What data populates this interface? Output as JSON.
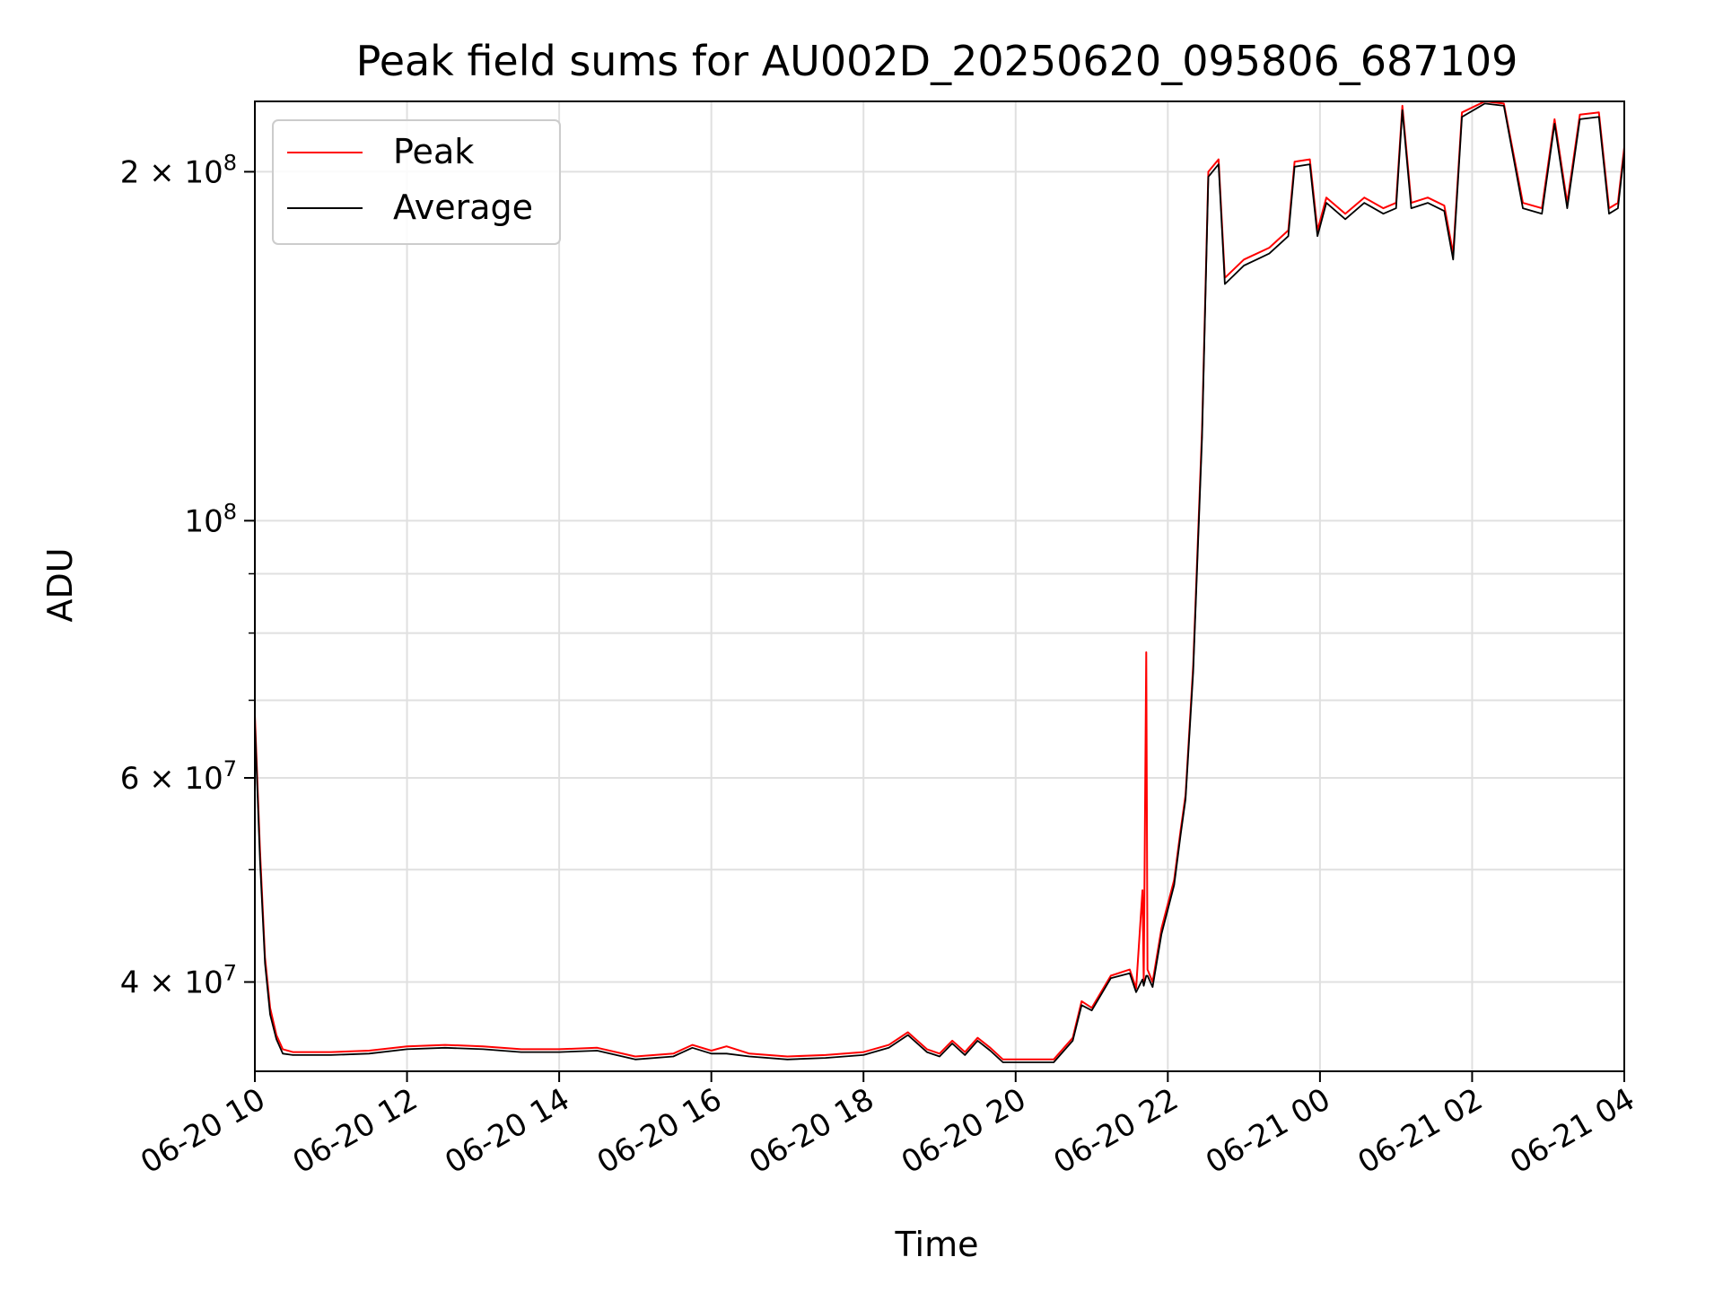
{
  "chart_data": {
    "type": "line",
    "title": "Peak field sums for AU002D_20250620_095806_687109",
    "xlabel": "Time",
    "ylabel": "ADU",
    "y_scale": "log",
    "ylim": [
      33500000,
      230000000
    ],
    "xlim": [
      "06-20 10:00",
      "06-21 04:00"
    ],
    "grid": true,
    "legend_position": "upper-left",
    "x_ticks": [
      {
        "t": "06-20 10:00",
        "label": "06-20 10"
      },
      {
        "t": "06-20 12:00",
        "label": "06-20 12"
      },
      {
        "t": "06-20 14:00",
        "label": "06-20 14"
      },
      {
        "t": "06-20 16:00",
        "label": "06-20 16"
      },
      {
        "t": "06-20 18:00",
        "label": "06-20 18"
      },
      {
        "t": "06-20 20:00",
        "label": "06-20 20"
      },
      {
        "t": "06-20 22:00",
        "label": "06-20 22"
      },
      {
        "t": "06-21 00:00",
        "label": "06-21 00"
      },
      {
        "t": "06-21 02:00",
        "label": "06-21 02"
      },
      {
        "t": "06-21 04:00",
        "label": "06-21 04"
      }
    ],
    "y_ticks": [
      {
        "value": 40000000,
        "coef": "4",
        "exp": "7"
      },
      {
        "value": 60000000,
        "coef": "6",
        "exp": "7"
      },
      {
        "value": 100000000,
        "coef": "",
        "exp": "8"
      },
      {
        "value": 200000000,
        "coef": "2",
        "exp": "8"
      }
    ],
    "y_minor_ticks": [
      50000000,
      70000000,
      80000000,
      90000000
    ],
    "series": [
      {
        "name": "Peak",
        "color": "#ff0000",
        "points": [
          [
            "06-20 10:00",
            68000000
          ],
          [
            "06-20 10:04",
            52000000
          ],
          [
            "06-20 10:08",
            42000000
          ],
          [
            "06-20 10:12",
            38000000
          ],
          [
            "06-20 10:17",
            36000000
          ],
          [
            "06-20 10:22",
            35000000
          ],
          [
            "06-20 10:30",
            34800000
          ],
          [
            "06-20 11:00",
            34800000
          ],
          [
            "06-20 11:30",
            34900000
          ],
          [
            "06-20 12:00",
            35200000
          ],
          [
            "06-20 12:30",
            35300000
          ],
          [
            "06-20 13:00",
            35200000
          ],
          [
            "06-20 13:30",
            35000000
          ],
          [
            "06-20 14:00",
            35000000
          ],
          [
            "06-20 14:30",
            35100000
          ],
          [
            "06-20 15:00",
            34500000
          ],
          [
            "06-20 15:30",
            34700000
          ],
          [
            "06-20 15:45",
            35300000
          ],
          [
            "06-20 16:00",
            34900000
          ],
          [
            "06-20 16:12",
            35200000
          ],
          [
            "06-20 16:30",
            34700000
          ],
          [
            "06-20 17:00",
            34500000
          ],
          [
            "06-20 17:30",
            34600000
          ],
          [
            "06-20 18:00",
            34800000
          ],
          [
            "06-20 18:20",
            35300000
          ],
          [
            "06-20 18:35",
            36200000
          ],
          [
            "06-20 18:50",
            35000000
          ],
          [
            "06-20 19:00",
            34700000
          ],
          [
            "06-20 19:10",
            35600000
          ],
          [
            "06-20 19:20",
            34800000
          ],
          [
            "06-20 19:30",
            35800000
          ],
          [
            "06-20 19:40",
            35100000
          ],
          [
            "06-20 19:50",
            34300000
          ],
          [
            "06-20 20:00",
            34300000
          ],
          [
            "06-20 20:30",
            34300000
          ],
          [
            "06-20 20:45",
            35800000
          ],
          [
            "06-20 20:52",
            38500000
          ],
          [
            "06-20 21:00",
            38000000
          ],
          [
            "06-20 21:15",
            40500000
          ],
          [
            "06-20 21:30",
            41000000
          ],
          [
            "06-20 21:35",
            39500000
          ],
          [
            "06-20 21:40",
            48000000
          ],
          [
            "06-20 21:41",
            40000000
          ],
          [
            "06-20 21:43",
            77000000
          ],
          [
            "06-20 21:44",
            41000000
          ],
          [
            "06-20 21:48",
            40000000
          ],
          [
            "06-20 21:55",
            44500000
          ],
          [
            "06-20 22:05",
            49000000
          ],
          [
            "06-20 22:10",
            54000000
          ],
          [
            "06-20 22:14",
            58000000
          ],
          [
            "06-20 22:20",
            75000000
          ],
          [
            "06-20 22:27",
            120000000
          ],
          [
            "06-20 22:32",
            200000000
          ],
          [
            "06-20 22:40",
            205000000
          ],
          [
            "06-20 22:45",
            162000000
          ],
          [
            "06-20 23:00",
            168000000
          ],
          [
            "06-20 23:20",
            172000000
          ],
          [
            "06-20 23:35",
            178000000
          ],
          [
            "06-20 23:40",
            204000000
          ],
          [
            "06-20 23:52",
            205000000
          ],
          [
            "06-20 23:58",
            178000000
          ],
          [
            "06-21 00:05",
            190000000
          ],
          [
            "06-21 00:20",
            184000000
          ],
          [
            "06-21 00:35",
            190000000
          ],
          [
            "06-21 00:50",
            186000000
          ],
          [
            "06-21 01:00",
            188000000
          ],
          [
            "06-21 01:05",
            228000000
          ],
          [
            "06-21 01:12",
            188000000
          ],
          [
            "06-21 01:25",
            190000000
          ],
          [
            "06-21 01:38",
            187000000
          ],
          [
            "06-21 01:45",
            170000000
          ],
          [
            "06-21 01:52",
            225000000
          ],
          [
            "06-21 02:10",
            230000000
          ],
          [
            "06-21 02:25",
            229000000
          ],
          [
            "06-21 02:40",
            188000000
          ],
          [
            "06-21 02:55",
            186000000
          ],
          [
            "06-21 03:05",
            222000000
          ],
          [
            "06-21 03:15",
            188000000
          ],
          [
            "06-21 03:25",
            224000000
          ],
          [
            "06-21 03:40",
            225000000
          ],
          [
            "06-21 03:48",
            186000000
          ],
          [
            "06-21 03:55",
            188000000
          ],
          [
            "06-21 04:00",
            210000000
          ]
        ]
      },
      {
        "name": "Average",
        "color": "#000000",
        "points": [
          [
            "06-20 10:00",
            67000000
          ],
          [
            "06-20 10:04",
            51000000
          ],
          [
            "06-20 10:08",
            41500000
          ],
          [
            "06-20 10:12",
            37500000
          ],
          [
            "06-20 10:17",
            35700000
          ],
          [
            "06-20 10:22",
            34700000
          ],
          [
            "06-20 10:30",
            34600000
          ],
          [
            "06-20 11:00",
            34600000
          ],
          [
            "06-20 11:30",
            34700000
          ],
          [
            "06-20 12:00",
            35000000
          ],
          [
            "06-20 12:30",
            35100000
          ],
          [
            "06-20 13:00",
            35000000
          ],
          [
            "06-20 13:30",
            34800000
          ],
          [
            "06-20 14:00",
            34800000
          ],
          [
            "06-20 14:30",
            34900000
          ],
          [
            "06-20 15:00",
            34300000
          ],
          [
            "06-20 15:30",
            34500000
          ],
          [
            "06-20 15:45",
            35100000
          ],
          [
            "06-20 16:00",
            34700000
          ],
          [
            "06-20 16:12",
            34700000
          ],
          [
            "06-20 16:30",
            34500000
          ],
          [
            "06-20 17:00",
            34300000
          ],
          [
            "06-20 17:30",
            34400000
          ],
          [
            "06-20 18:00",
            34600000
          ],
          [
            "06-20 18:20",
            35100000
          ],
          [
            "06-20 18:35",
            36000000
          ],
          [
            "06-20 18:50",
            34800000
          ],
          [
            "06-20 19:00",
            34500000
          ],
          [
            "06-20 19:10",
            35400000
          ],
          [
            "06-20 19:20",
            34600000
          ],
          [
            "06-20 19:30",
            35600000
          ],
          [
            "06-20 19:40",
            34900000
          ],
          [
            "06-20 19:50",
            34100000
          ],
          [
            "06-20 20:00",
            34100000
          ],
          [
            "06-20 20:30",
            34100000
          ],
          [
            "06-20 20:45",
            35600000
          ],
          [
            "06-20 20:52",
            38200000
          ],
          [
            "06-20 21:00",
            37800000
          ],
          [
            "06-20 21:15",
            40300000
          ],
          [
            "06-20 21:30",
            40700000
          ],
          [
            "06-20 21:35",
            39200000
          ],
          [
            "06-20 21:40",
            40200000
          ],
          [
            "06-20 21:41",
            39700000
          ],
          [
            "06-20 21:43",
            40500000
          ],
          [
            "06-20 21:44",
            40500000
          ],
          [
            "06-20 21:48",
            39600000
          ],
          [
            "06-20 21:55",
            44000000
          ],
          [
            "06-20 22:05",
            48500000
          ],
          [
            "06-20 22:10",
            53500000
          ],
          [
            "06-20 22:14",
            57500000
          ],
          [
            "06-20 22:20",
            74000000
          ],
          [
            "06-20 22:27",
            118000000
          ],
          [
            "06-20 22:32",
            198000000
          ],
          [
            "06-20 22:40",
            203000000
          ],
          [
            "06-20 22:45",
            160000000
          ],
          [
            "06-20 23:00",
            166000000
          ],
          [
            "06-20 23:20",
            170000000
          ],
          [
            "06-20 23:35",
            176000000
          ],
          [
            "06-20 23:40",
            202000000
          ],
          [
            "06-20 23:52",
            203000000
          ],
          [
            "06-20 23:58",
            176000000
          ],
          [
            "06-21 00:05",
            188000000
          ],
          [
            "06-21 00:20",
            182000000
          ],
          [
            "06-21 00:35",
            188000000
          ],
          [
            "06-21 00:50",
            184000000
          ],
          [
            "06-21 01:00",
            186000000
          ],
          [
            "06-21 01:05",
            226000000
          ],
          [
            "06-21 01:12",
            186000000
          ],
          [
            "06-21 01:25",
            188000000
          ],
          [
            "06-21 01:38",
            185000000
          ],
          [
            "06-21 01:45",
            168000000
          ],
          [
            "06-21 01:52",
            223000000
          ],
          [
            "06-21 02:10",
            229000000
          ],
          [
            "06-21 02:25",
            228000000
          ],
          [
            "06-21 02:40",
            186000000
          ],
          [
            "06-21 02:55",
            184000000
          ],
          [
            "06-21 03:05",
            220000000
          ],
          [
            "06-21 03:15",
            186000000
          ],
          [
            "06-21 03:25",
            222000000
          ],
          [
            "06-21 03:40",
            223000000
          ],
          [
            "06-21 03:48",
            184000000
          ],
          [
            "06-21 03:55",
            186000000
          ],
          [
            "06-21 04:00",
            208000000
          ]
        ]
      }
    ]
  }
}
